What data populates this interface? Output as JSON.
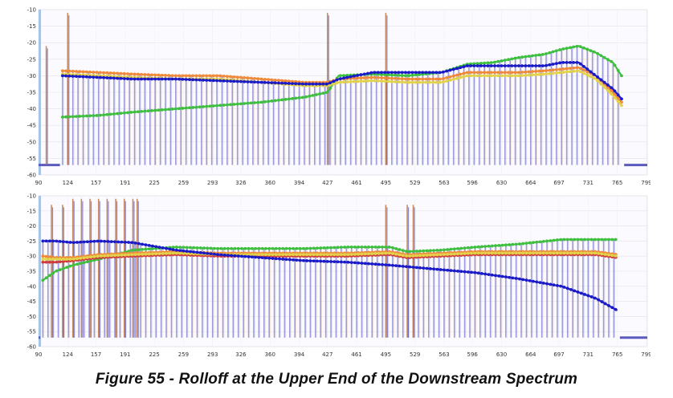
{
  "caption": "Figure 55 - Rolloff at the Upper End of the Downstream Spectrum",
  "colors": {
    "background": "#ffffff",
    "grid": "#e4e4e4",
    "bars": "#8c8cd8",
    "bars_dark": "#5b5bbf",
    "series_blue": "#1a1ac8",
    "series_green": "#3fbf3f",
    "series_orange": "#f08a3a",
    "series_yellow": "#e2d24a",
    "series_red": "#d03a3a"
  },
  "chart_data": [
    {
      "type": "line",
      "title": "",
      "xlabel": "",
      "ylabel": "",
      "xlim": [
        90,
        800
      ],
      "ylim": [
        -60,
        -10
      ],
      "yticks": [
        -10,
        -15,
        -20,
        -25,
        -30,
        -35,
        -40,
        -45,
        -50,
        -55,
        -60
      ],
      "xticks": [
        90,
        124,
        157,
        191,
        225,
        259,
        293,
        326,
        360,
        394,
        427,
        461,
        495,
        529,
        563,
        596,
        630,
        664,
        697,
        731,
        765,
        799
      ],
      "grid": true,
      "legend": "none",
      "floor": -57,
      "spikes": [
        {
          "x": 99,
          "y": -21
        },
        {
          "x": 124,
          "y": -11
        },
        {
          "x": 427,
          "y": -11
        },
        {
          "x": 495,
          "y": -11
        }
      ],
      "series": [
        {
          "color_key": "series_green",
          "x": [
            118,
            160,
            200,
            250,
            300,
            350,
            400,
            427,
            440,
            480,
            520,
            560,
            590,
            620,
            650,
            680,
            700,
            720,
            740,
            760,
            770
          ],
          "y": [
            -42.5,
            -42,
            -41,
            -40,
            -39,
            -38,
            -36.5,
            -35,
            -30,
            -29.5,
            -30,
            -29,
            -26.5,
            -26,
            -24.5,
            -23.5,
            -22,
            -21,
            -23,
            -26,
            -30
          ]
        },
        {
          "color_key": "series_orange",
          "x": [
            118,
            160,
            200,
            250,
            300,
            350,
            400,
            427,
            440,
            480,
            520,
            560,
            590,
            620,
            650,
            680,
            700,
            720,
            740,
            760,
            770
          ],
          "y": [
            -28.5,
            -29,
            -29.5,
            -30,
            -30,
            -31,
            -32,
            -32,
            -31,
            -30.5,
            -31,
            -31,
            -29,
            -29,
            -29,
            -28.5,
            -28,
            -27.5,
            -30,
            -35,
            -38
          ]
        },
        {
          "color_key": "series_yellow",
          "x": [
            118,
            160,
            200,
            250,
            300,
            350,
            400,
            427,
            440,
            480,
            520,
            560,
            590,
            620,
            650,
            680,
            700,
            720,
            740,
            760,
            770
          ],
          "y": [
            -29.5,
            -30,
            -30.5,
            -31,
            -31,
            -32,
            -33,
            -33,
            -32,
            -31.5,
            -32,
            -32,
            -30,
            -30,
            -30,
            -29.5,
            -29,
            -28.5,
            -31,
            -36,
            -39
          ]
        },
        {
          "color_key": "series_blue",
          "x": [
            118,
            160,
            200,
            250,
            300,
            350,
            400,
            427,
            440,
            480,
            520,
            560,
            590,
            620,
            650,
            680,
            700,
            720,
            740,
            760,
            770
          ],
          "y": [
            -30,
            -30.5,
            -31,
            -31,
            -31.5,
            -32,
            -32.5,
            -32.5,
            -31,
            -29,
            -29,
            -29,
            -27,
            -27,
            -27,
            -27,
            -26,
            -26,
            -30,
            -34,
            -37
          ]
        }
      ]
    },
    {
      "type": "line",
      "title": "",
      "xlabel": "",
      "ylabel": "",
      "xlim": [
        90,
        800
      ],
      "ylim": [
        -60,
        -10
      ],
      "yticks": [
        -10,
        -15,
        -20,
        -25,
        -30,
        -35,
        -40,
        -45,
        -50,
        -55,
        -60
      ],
      "xticks": [
        90,
        124,
        157,
        191,
        225,
        259,
        293,
        326,
        360,
        394,
        427,
        461,
        495,
        529,
        563,
        596,
        630,
        664,
        697,
        731,
        765,
        799
      ],
      "grid": true,
      "legend": "none",
      "floor": -57,
      "spikes": [
        {
          "x": 105,
          "y": -13
        },
        {
          "x": 118,
          "y": -13
        },
        {
          "x": 130,
          "y": -11
        },
        {
          "x": 140,
          "y": -11
        },
        {
          "x": 150,
          "y": -11
        },
        {
          "x": 160,
          "y": -11
        },
        {
          "x": 170,
          "y": -11
        },
        {
          "x": 180,
          "y": -11
        },
        {
          "x": 190,
          "y": -11
        },
        {
          "x": 200,
          "y": -11
        },
        {
          "x": 205,
          "y": -11
        },
        {
          "x": 495,
          "y": -13
        },
        {
          "x": 520,
          "y": -13
        },
        {
          "x": 527,
          "y": -13
        }
      ],
      "series": [
        {
          "color_key": "series_green",
          "x": [
            95,
            110,
            130,
            160,
            200,
            250,
            300,
            350,
            400,
            450,
            500,
            520,
            560,
            600,
            650,
            700,
            740,
            765
          ],
          "y": [
            -38,
            -35,
            -33,
            -31,
            -28,
            -27,
            -27.5,
            -27.5,
            -27.5,
            -27,
            -27,
            -28.5,
            -28,
            -27,
            -26,
            -24.5,
            -24.5,
            -24.5
          ]
        },
        {
          "color_key": "series_orange",
          "x": [
            95,
            110,
            130,
            160,
            200,
            250,
            300,
            350,
            400,
            450,
            500,
            520,
            560,
            600,
            650,
            700,
            740,
            765
          ],
          "y": [
            -30,
            -30.5,
            -30.5,
            -29.5,
            -29,
            -28.5,
            -29,
            -29,
            -29,
            -29,
            -28.5,
            -29.5,
            -29,
            -28.5,
            -28.5,
            -28.5,
            -28.5,
            -29.5
          ]
        },
        {
          "color_key": "series_red",
          "x": [
            95,
            110,
            130,
            160,
            200,
            250,
            300,
            350,
            400,
            450,
            500,
            520,
            560,
            600,
            650,
            700,
            740,
            765
          ],
          "y": [
            -32,
            -32,
            -31.5,
            -30.5,
            -30,
            -29.5,
            -30,
            -30,
            -30,
            -30,
            -29.5,
            -30.5,
            -30,
            -29.5,
            -29.5,
            -29.5,
            -29.5,
            -30.5
          ]
        },
        {
          "color_key": "series_yellow",
          "x": [
            95,
            110,
            130,
            160,
            200,
            250,
            300,
            350,
            400,
            450,
            500,
            520,
            560,
            600,
            650,
            700,
            740,
            765
          ],
          "y": [
            -31,
            -31,
            -31,
            -30,
            -29.5,
            -29,
            -29.5,
            -29.5,
            -29.5,
            -29.5,
            -29,
            -30,
            -29.5,
            -29,
            -29,
            -29,
            -29,
            -30
          ]
        },
        {
          "color_key": "series_blue",
          "x": [
            95,
            110,
            130,
            160,
            200,
            250,
            300,
            350,
            400,
            450,
            500,
            520,
            560,
            600,
            650,
            700,
            740,
            765
          ],
          "y": [
            -25,
            -25,
            -25.5,
            -25,
            -25.5,
            -28,
            -29.5,
            -30.5,
            -31.5,
            -32,
            -33,
            -33.5,
            -34.5,
            -35.5,
            -37.5,
            -40,
            -44,
            -48
          ]
        }
      ]
    }
  ]
}
